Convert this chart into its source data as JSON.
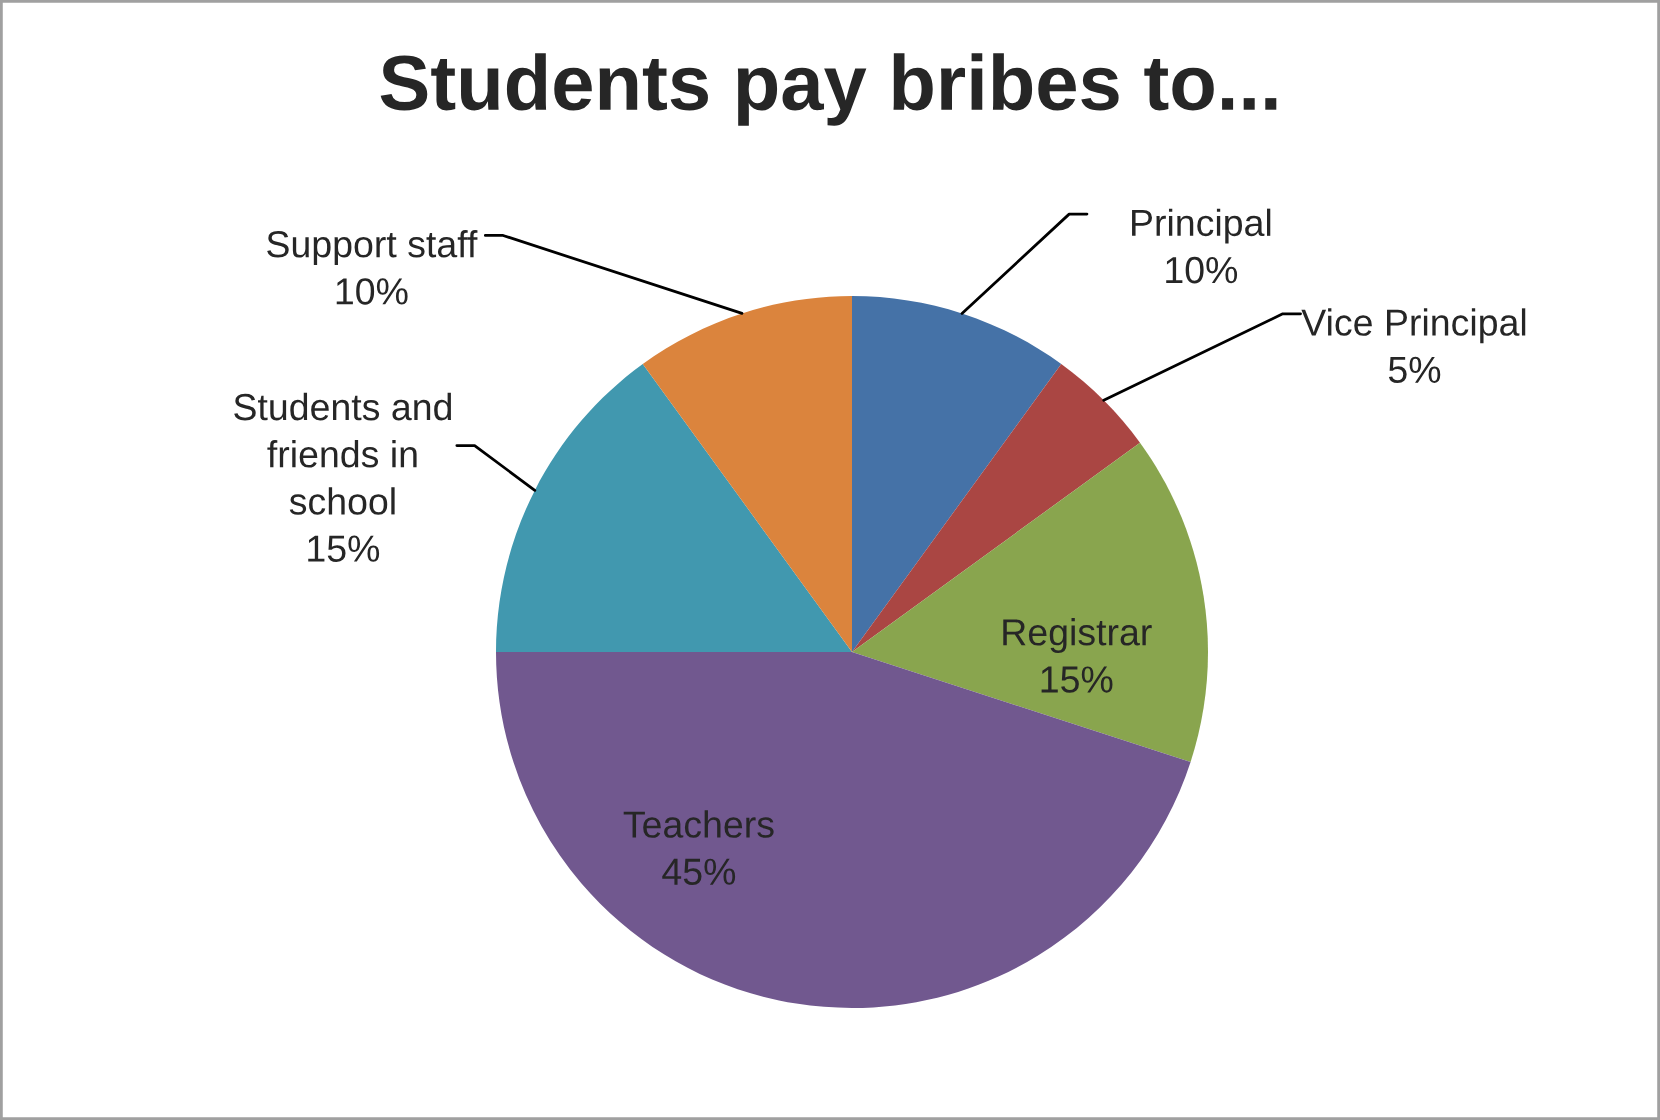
{
  "chart_data": {
    "type": "pie",
    "title": "Students pay bribes to...",
    "categories": [
      "Principal",
      "Vice Principal",
      "Registrar",
      "Teachers",
      "Students and friends in school",
      "Support staff"
    ],
    "values": [
      10,
      5,
      15,
      45,
      15,
      10
    ],
    "value_labels": [
      "10%",
      "5%",
      "15%",
      "45%",
      "15%",
      "10%"
    ],
    "colors": [
      "#4572a7",
      "#aa4643",
      "#89a54e",
      "#71588f",
      "#4198af",
      "#db843d"
    ],
    "legend": false
  }
}
